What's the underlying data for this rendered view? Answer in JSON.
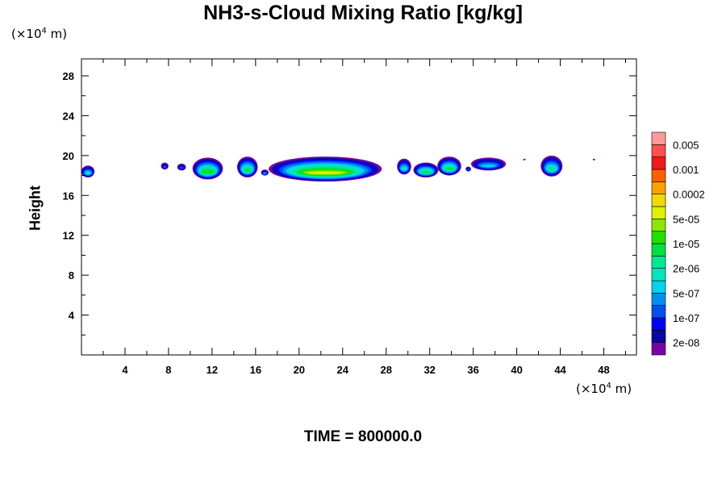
{
  "chart_data": {
    "type": "heatmap",
    "title": "NH3-s-Cloud Mixing Ratio [kg/kg]",
    "ylabel": "Height",
    "xlabel": "",
    "x_unit_prefix": "(×10",
    "x_unit_exp": "4",
    "x_unit_suffix": " m)",
    "y_unit_prefix": "(×10",
    "y_unit_exp": "4",
    "y_unit_suffix": " m)",
    "xlim": [
      0,
      51
    ],
    "ylim": [
      0,
      29.7
    ],
    "x_ticks": [
      4,
      8,
      12,
      16,
      20,
      24,
      28,
      32,
      36,
      40,
      44,
      48
    ],
    "y_ticks": [
      4,
      8,
      12,
      16,
      20,
      24,
      28
    ],
    "colorbar": {
      "colors": [
        "#7a00a8",
        "#0a0aa0",
        "#0000ff",
        "#0050f0",
        "#0090f0",
        "#00d2f0",
        "#00e6c0",
        "#00e890",
        "#00e040",
        "#20e000",
        "#8ce600",
        "#dcf000",
        "#f0d800",
        "#ffa000",
        "#ff6000",
        "#f01818",
        "#ff5050",
        "#ff9a9a"
      ],
      "labels": [
        "2e-08",
        "1e-07",
        "5e-07",
        "2e-06",
        "1e-05",
        "5e-05",
        "0.0002",
        "0.001",
        "0.005"
      ]
    },
    "cloud_blobs": [
      {
        "x0": 0.0,
        "x1": 1.2,
        "y0": 17.8,
        "y1": 19.0,
        "peak": 6
      },
      {
        "x0": 7.3,
        "x1": 8.0,
        "y0": 18.6,
        "y1": 19.3,
        "peak": 3
      },
      {
        "x0": 8.8,
        "x1": 9.6,
        "y0": 18.5,
        "y1": 19.2,
        "peak": 3
      },
      {
        "x0": 10.2,
        "x1": 13.0,
        "y0": 17.6,
        "y1": 19.8,
        "peak": 9
      },
      {
        "x0": 14.3,
        "x1": 16.2,
        "y0": 17.8,
        "y1": 19.9,
        "peak": 8
      },
      {
        "x0": 16.5,
        "x1": 17.2,
        "y0": 18.0,
        "y1": 18.6,
        "peak": 4
      },
      {
        "x0": 17.2,
        "x1": 27.6,
        "y0": 17.4,
        "y1": 19.9,
        "peak": 11
      },
      {
        "x0": 29.0,
        "x1": 30.3,
        "y0": 18.1,
        "y1": 19.7,
        "peak": 6
      },
      {
        "x0": 30.5,
        "x1": 32.8,
        "y0": 17.8,
        "y1": 19.3,
        "peak": 8
      },
      {
        "x0": 32.7,
        "x1": 34.9,
        "y0": 18.0,
        "y1": 19.9,
        "peak": 8
      },
      {
        "x0": 35.3,
        "x1": 35.8,
        "y0": 18.4,
        "y1": 18.9,
        "peak": 3
      },
      {
        "x0": 35.8,
        "x1": 39.0,
        "y0": 18.5,
        "y1": 19.8,
        "peak": 5
      },
      {
        "x0": 42.2,
        "x1": 44.2,
        "y0": 17.9,
        "y1": 20.0,
        "peak": 7
      }
    ],
    "specks": [
      {
        "x": 40.7,
        "y": 19.6
      },
      {
        "x": 47.1,
        "y": 19.6
      }
    ]
  },
  "time_label": "TIME = 800000.0"
}
